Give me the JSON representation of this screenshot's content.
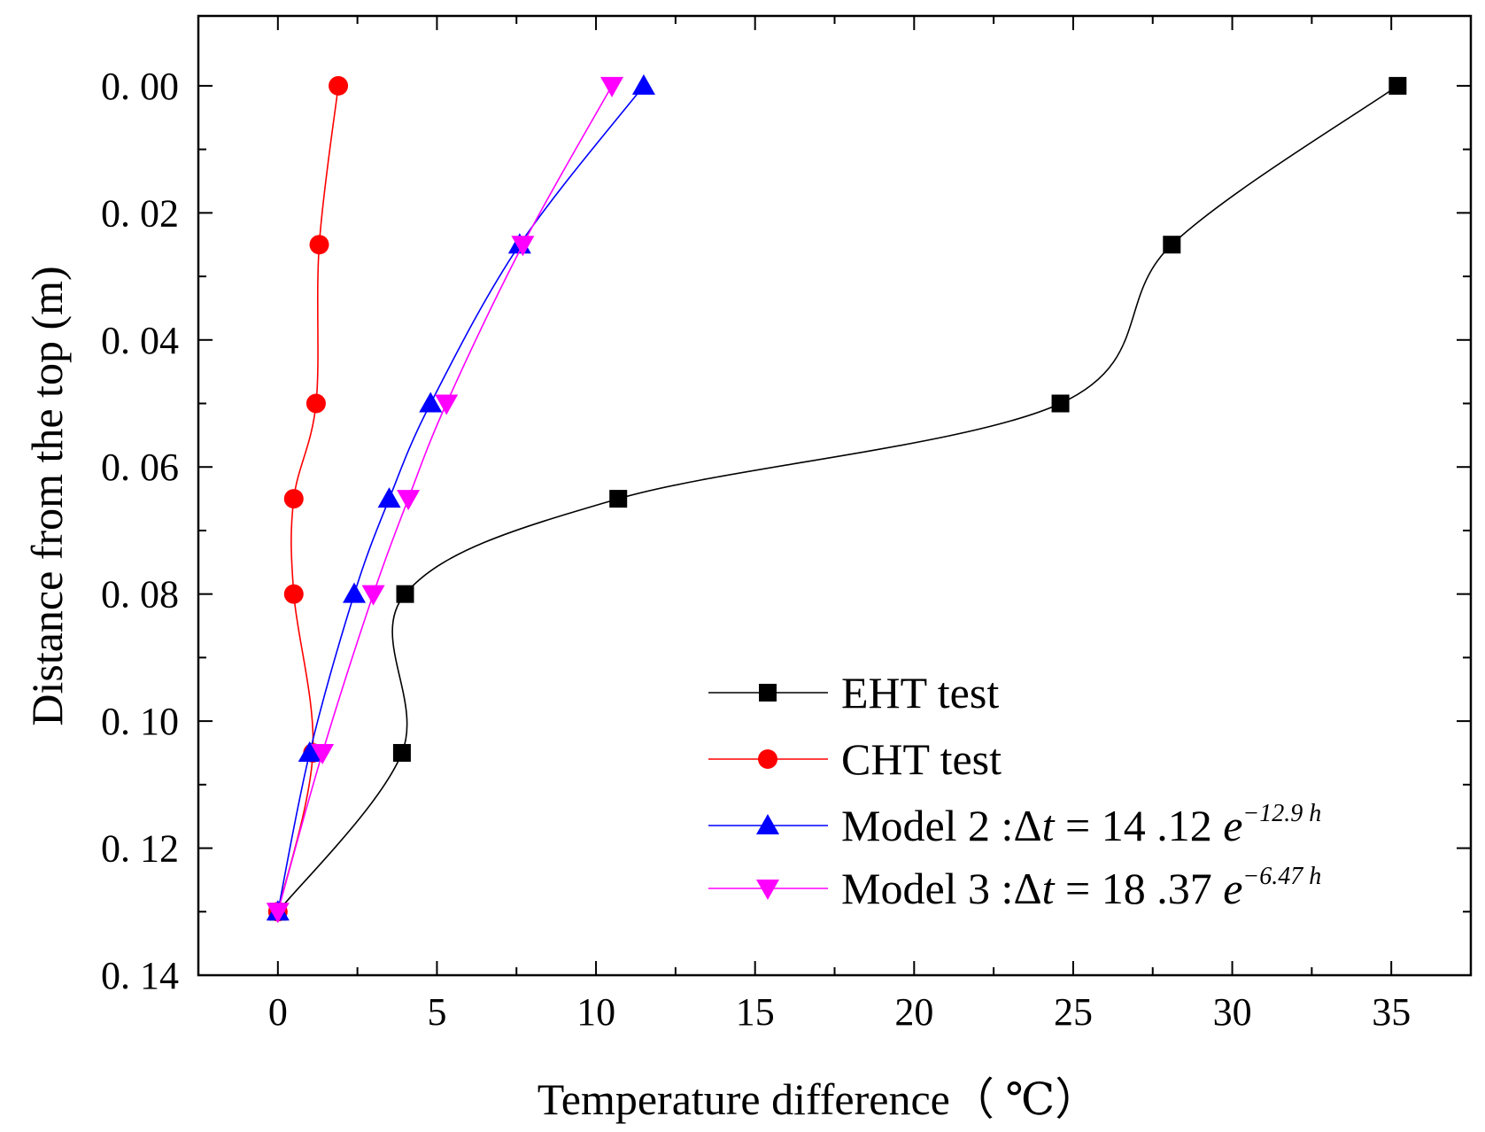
{
  "chart_data": {
    "type": "line",
    "title": "",
    "xlabel": "Temperature difference（ ℃）",
    "ylabel": "Distance from the top (m)",
    "xlim": [
      -2.5,
      37.5
    ],
    "ylim": [
      -0.011,
      0.14
    ],
    "y_inverted": true,
    "xticks": [
      0,
      5,
      10,
      15,
      20,
      25,
      30,
      35
    ],
    "xtick_labels": [
      "0",
      "5",
      "10",
      "15",
      "20",
      "25",
      "30",
      "35"
    ],
    "yticks": [
      0.0,
      0.02,
      0.04,
      0.06,
      0.08,
      0.1,
      0.12,
      0.14
    ],
    "ytick_labels": [
      "0. 00",
      "0. 02",
      "0. 04",
      "0. 06",
      "0. 08",
      "0. 10",
      "0. 12",
      "0. 14"
    ],
    "grid": false,
    "legend_position": "bottom-right",
    "series": [
      {
        "name": "EHT test",
        "color": "#000000",
        "marker": "square",
        "points": [
          [
            35.2,
            0.0
          ],
          [
            28.1,
            0.025
          ],
          [
            24.6,
            0.05
          ],
          [
            10.7,
            0.065
          ],
          [
            4.0,
            0.08
          ],
          [
            3.9,
            0.105
          ],
          [
            0.0,
            0.13
          ]
        ]
      },
      {
        "name": "CHT test",
        "color": "#ff0000",
        "marker": "circle",
        "points": [
          [
            1.9,
            0.0
          ],
          [
            1.3,
            0.025
          ],
          [
            1.2,
            0.05
          ],
          [
            0.5,
            0.065
          ],
          [
            0.5,
            0.08
          ],
          [
            1.1,
            0.105
          ],
          [
            0.0,
            0.13
          ]
        ]
      },
      {
        "name": "Model 2 :Δt = 14.12 e^(−12.9 h)",
        "color": "#0000ff",
        "marker": "triangle-up",
        "points": [
          [
            11.5,
            0.0
          ],
          [
            7.6,
            0.025
          ],
          [
            4.8,
            0.05
          ],
          [
            3.5,
            0.065
          ],
          [
            2.4,
            0.08
          ],
          [
            1.0,
            0.105
          ],
          [
            0.0,
            0.13
          ]
        ]
      },
      {
        "name": "Model 3 :Δt = 18.37 e^(−6.47 h)",
        "color": "#ff00ff",
        "marker": "triangle-down",
        "points": [
          [
            10.5,
            0.0
          ],
          [
            7.7,
            0.025
          ],
          [
            5.3,
            0.05
          ],
          [
            4.1,
            0.065
          ],
          [
            3.0,
            0.08
          ],
          [
            1.4,
            0.105
          ],
          [
            0.0,
            0.13
          ]
        ]
      }
    ]
  },
  "legend": {
    "items": [
      {
        "text": "EHT test"
      },
      {
        "text": "CHT test"
      },
      {
        "prefix": "Model 2 :",
        "delta": "Δ",
        "var": "t",
        "eq": " = 14 .12 ",
        "e": "e",
        "exp": "−12.9 h"
      },
      {
        "prefix": "Model 3 :",
        "delta": "Δ",
        "var": "t",
        "eq": " = 18 .37 ",
        "e": "e",
        "exp": "−6.47 h"
      }
    ]
  }
}
